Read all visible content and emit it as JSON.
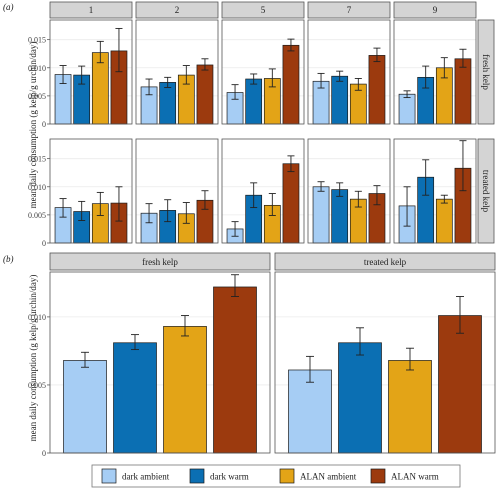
{
  "chart_data": [
    {
      "type": "bar",
      "panel_tag": "(a)",
      "ylabel": "mean daily consumption (g kelp/g urchin/day)",
      "column_facets": [
        "1",
        "2",
        "5",
        "7",
        "9"
      ],
      "row_facets": [
        "fresh kelp",
        "treated kelp"
      ],
      "series_names": [
        "dark ambient",
        "dark warm",
        "ALAN ambient",
        "ALAN warm"
      ],
      "ylim": [
        0,
        0.0185
      ],
      "yticks": [
        0,
        0.005,
        0.01,
        0.015
      ],
      "ytick_labels": [
        "0",
        "0.005",
        "0.010",
        "0.015"
      ],
      "grid": true,
      "cells": [
        {
          "row": "fresh kelp",
          "col": "1",
          "values": [
            0.0088,
            0.0087,
            0.0127,
            0.013
          ],
          "err_low": [
            0.0072,
            0.0071,
            0.0109,
            0.0093
          ],
          "err_high": [
            0.0104,
            0.0103,
            0.0147,
            0.017
          ]
        },
        {
          "row": "fresh kelp",
          "col": "2",
          "values": [
            0.0066,
            0.0074,
            0.0087,
            0.0105
          ],
          "err_low": [
            0.0052,
            0.0065,
            0.0071,
            0.0096
          ],
          "err_high": [
            0.008,
            0.0083,
            0.0104,
            0.0116
          ]
        },
        {
          "row": "fresh kelp",
          "col": "5",
          "values": [
            0.0056,
            0.008,
            0.0081,
            0.014
          ],
          "err_low": [
            0.0044,
            0.0071,
            0.0066,
            0.013
          ],
          "err_high": [
            0.007,
            0.0089,
            0.0098,
            0.0151
          ]
        },
        {
          "row": "fresh kelp",
          "col": "7",
          "values": [
            0.0076,
            0.0085,
            0.0071,
            0.0122
          ],
          "err_low": [
            0.0064,
            0.0076,
            0.006,
            0.0111
          ],
          "err_high": [
            0.009,
            0.0094,
            0.0081,
            0.0135
          ]
        },
        {
          "row": "fresh kelp",
          "col": "9",
          "values": [
            0.0053,
            0.0083,
            0.01,
            0.0116
          ],
          "err_low": [
            0.0047,
            0.0064,
            0.0082,
            0.0101
          ],
          "err_high": [
            0.0059,
            0.0103,
            0.0118,
            0.0133
          ]
        },
        {
          "row": "treated kelp",
          "col": "1",
          "values": [
            0.0063,
            0.0056,
            0.007,
            0.0071
          ],
          "err_low": [
            0.0046,
            0.004,
            0.0049,
            0.0039
          ],
          "err_high": [
            0.0079,
            0.0074,
            0.009,
            0.01
          ]
        },
        {
          "row": "treated kelp",
          "col": "2",
          "values": [
            0.0053,
            0.0058,
            0.0052,
            0.0076
          ],
          "err_low": [
            0.0036,
            0.0038,
            0.0035,
            0.006
          ],
          "err_high": [
            0.007,
            0.0077,
            0.0072,
            0.0093
          ]
        },
        {
          "row": "treated kelp",
          "col": "5",
          "values": [
            0.0025,
            0.0085,
            0.0067,
            0.0141
          ],
          "err_low": [
            0.0012,
            0.0063,
            0.0049,
            0.0127
          ],
          "err_high": [
            0.0038,
            0.0107,
            0.0088,
            0.0155
          ]
        },
        {
          "row": "treated kelp",
          "col": "7",
          "values": [
            0.01,
            0.0095,
            0.0078,
            0.0088
          ],
          "err_low": [
            0.0092,
            0.0083,
            0.0064,
            0.0068
          ],
          "err_high": [
            0.0109,
            0.0107,
            0.0092,
            0.0102
          ]
        },
        {
          "row": "treated kelp",
          "col": "9",
          "values": [
            0.0066,
            0.0117,
            0.0078,
            0.0133
          ],
          "err_low": [
            0.003,
            0.0085,
            0.0071,
            0.0093
          ],
          "err_high": [
            0.01,
            0.0148,
            0.0085,
            0.0182
          ]
        }
      ]
    },
    {
      "type": "bar",
      "panel_tag": "(b)",
      "ylabel": "mean daily consumption (g kelp/g urchin/day)",
      "column_facets": [
        "fresh kelp",
        "treated kelp"
      ],
      "series_names": [
        "dark ambient",
        "dark warm",
        "ALAN ambient",
        "ALAN warm"
      ],
      "ylim": [
        0,
        0.0133
      ],
      "yticks": [
        0,
        0.005,
        0.01
      ],
      "ytick_labels": [
        "0",
        "0.005",
        "0.010"
      ],
      "grid": true,
      "cells": [
        {
          "col": "fresh kelp",
          "values": [
            0.0068,
            0.0081,
            0.0093,
            0.0122
          ],
          "err_low": [
            0.0063,
            0.0076,
            0.0086,
            0.0115
          ],
          "err_high": [
            0.0074,
            0.0087,
            0.0101,
            0.0131
          ]
        },
        {
          "col": "treated kelp",
          "values": [
            0.0061,
            0.0081,
            0.0068,
            0.0101
          ],
          "err_low": [
            0.0052,
            0.0072,
            0.0061,
            0.0088
          ],
          "err_high": [
            0.0071,
            0.0092,
            0.0077,
            0.0115
          ]
        }
      ]
    }
  ],
  "legend": {
    "placement": "bottom",
    "items": [
      {
        "label": "dark ambient",
        "color": "#a6cdf4"
      },
      {
        "label": "dark warm",
        "color": "#0b6fb3"
      },
      {
        "label": "ALAN ambient",
        "color": "#e3a417"
      },
      {
        "label": "ALAN warm",
        "color": "#9c3a0e"
      }
    ]
  },
  "colors": {
    "strip_background": "#d4d4d4",
    "panel_border": "#555555",
    "gridline": "#ebebeb",
    "error_bar": "#222222"
  }
}
